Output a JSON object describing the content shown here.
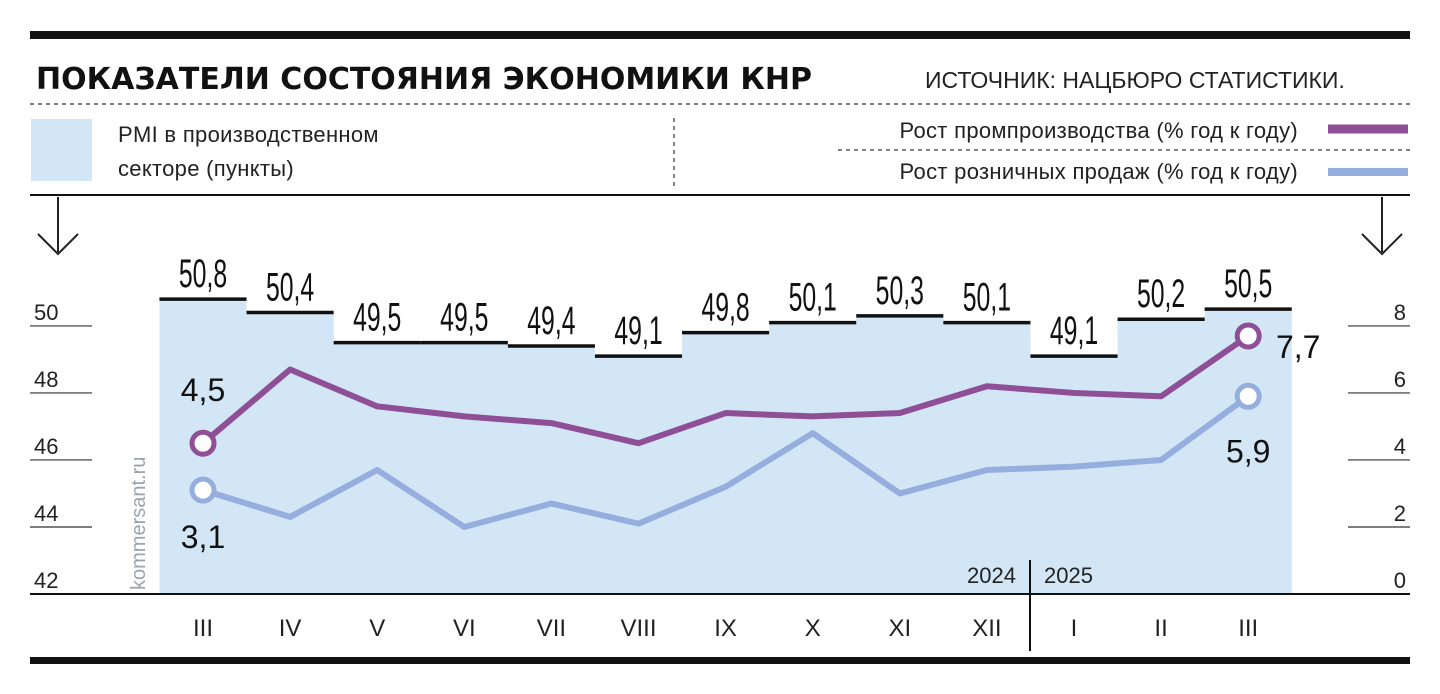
{
  "header": {
    "title": "ПОКАЗАТЕЛИ СОСТОЯНИЯ ЭКОНОМИКИ КНР",
    "source": "ИСТОЧНИК: НАЦБЮРО СТАТИСТИКИ."
  },
  "legend": {
    "pmi_line1": "PMI в производственном",
    "pmi_line2": "секторе (пункты)",
    "industrial": "Рост промпроизводства (% год к году)",
    "retail": "Рост розничных продаж (% год к году)"
  },
  "watermark": "kommersant.ru",
  "colors": {
    "pmi_fill": "#d3e6f5",
    "industrial": "#8f4f97",
    "retail": "#96aedd",
    "rule": "#111111"
  },
  "chart_data": {
    "type": "line",
    "categories": [
      "III",
      "IV",
      "V",
      "VI",
      "VII",
      "VIII",
      "IX",
      "X",
      "XI",
      "XII",
      "I",
      "II",
      "III"
    ],
    "years": [
      {
        "label": "2024",
        "from_index": 0,
        "to_index": 9
      },
      {
        "label": "2025",
        "from_index": 10,
        "to_index": 12
      }
    ],
    "pmi": {
      "name": "PMI в производственном секторе (пункты)",
      "type": "step-area",
      "axis": "left",
      "values": [
        50.8,
        50.4,
        49.5,
        49.5,
        49.4,
        49.1,
        49.8,
        50.1,
        50.3,
        50.1,
        49.1,
        50.2,
        50.5
      ],
      "labels": [
        "50,8",
        "50,4",
        "49,5",
        "49,5",
        "49,4",
        "49,1",
        "49,8",
        "50,1",
        "50,3",
        "50,1",
        "49,1",
        "50,2",
        "50,5"
      ]
    },
    "series": [
      {
        "name": "Рост промпроизводства (% год к году)",
        "axis": "right",
        "values": [
          4.5,
          6.7,
          5.6,
          5.3,
          5.1,
          4.5,
          5.4,
          5.3,
          5.4,
          6.2,
          6.0,
          5.9,
          7.7
        ],
        "first_label": "4,5",
        "last_label": "7,7"
      },
      {
        "name": "Рост розничных продаж (% год к году)",
        "axis": "right",
        "values": [
          3.1,
          2.3,
          3.7,
          2.0,
          2.7,
          2.1,
          3.2,
          4.8,
          3.0,
          3.7,
          3.8,
          4.0,
          5.9
        ],
        "first_label": "3,1",
        "last_label": "5,9"
      }
    ],
    "left_axis": {
      "ylim": [
        42,
        51.4
      ],
      "ticks": [
        "42",
        "44",
        "46",
        "48",
        "50"
      ],
      "tick_values": [
        42,
        44,
        46,
        48,
        50
      ]
    },
    "right_axis": {
      "ylim": [
        0,
        9.4
      ],
      "ticks": [
        "0",
        "2",
        "4",
        "6",
        "8"
      ],
      "tick_values": [
        0,
        2,
        4,
        6,
        8
      ]
    }
  }
}
